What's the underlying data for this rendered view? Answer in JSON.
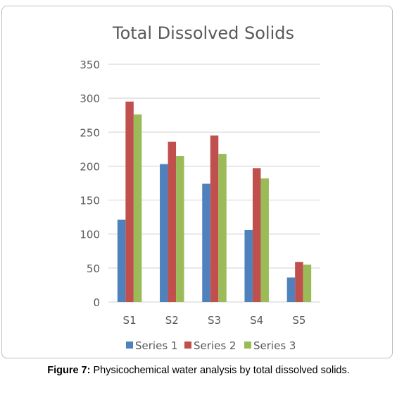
{
  "chart_data": {
    "type": "bar",
    "title": "Total Dissolved Solids",
    "categories": [
      "S1",
      "S2",
      "S3",
      "S4",
      "S5"
    ],
    "series": [
      {
        "name": "Series 1",
        "values": [
          121,
          203,
          174,
          106,
          36
        ],
        "color": "#4f81bd"
      },
      {
        "name": "Series 2",
        "values": [
          295,
          236,
          245,
          197,
          59
        ],
        "color": "#c0504d"
      },
      {
        "name": "Series 3",
        "values": [
          276,
          215,
          218,
          182,
          55
        ],
        "color": "#9bbb59"
      }
    ],
    "ylim": [
      0,
      350
    ],
    "yticks": [
      "0",
      "50",
      "100",
      "150",
      "200",
      "250",
      "300",
      "350"
    ],
    "grid": true,
    "legend": "bottom"
  },
  "caption": {
    "label": "Figure 7:",
    "text": " Physicochemical water analysis by total dissolved solids."
  },
  "colors": {
    "grid": "#d9d9d9",
    "axis_text": "#595959",
    "title_text": "#595959"
  }
}
